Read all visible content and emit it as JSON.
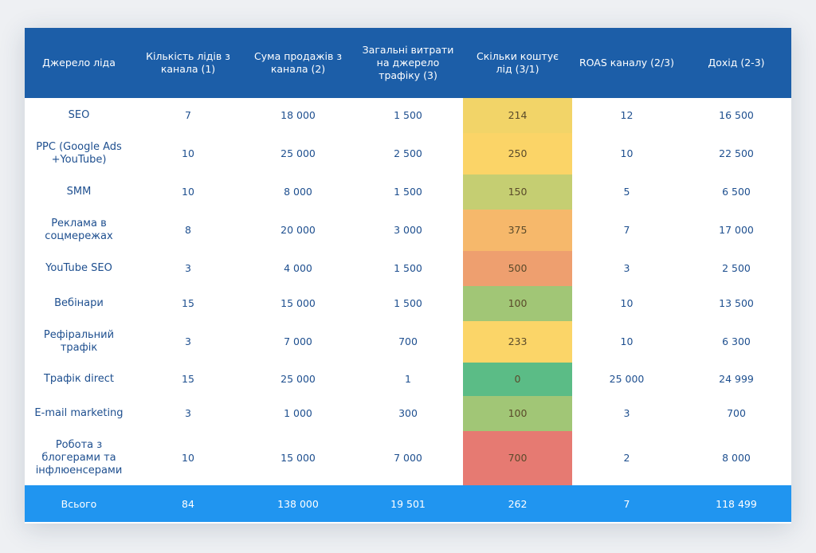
{
  "headers": [
    "Джерело ліда",
    "Кількість лідів з канала (1)",
    "Сума продажів з канала (2)",
    "Загальні витрати на джерело трафіку (3)",
    "Скільки коштує лід (3/1)",
    "ROAS каналу (2/3)",
    "Дохід (2-3)"
  ],
  "rows": [
    {
      "source": "SEO",
      "leads": "7",
      "sales": "18 000",
      "costs": "1 500",
      "cpl": "214",
      "roas": "12",
      "income": "16 500",
      "cpl_color": "#f2d468"
    },
    {
      "source": "PPC (Google Ads +YouTube)",
      "leads": "10",
      "sales": "25 000",
      "costs": "2 500",
      "cpl": "250",
      "roas": "10",
      "income": "22 500",
      "cpl_color": "#fbd467"
    },
    {
      "source": "SMM",
      "leads": "10",
      "sales": "8 000",
      "costs": "1 500",
      "cpl": "150",
      "roas": "5",
      "income": "6 500",
      "cpl_color": "#c5ce72"
    },
    {
      "source": "Реклама в соцмережах",
      "leads": "8",
      "sales": "20 000",
      "costs": "3 000",
      "cpl": "375",
      "roas": "7",
      "income": "17 000",
      "cpl_color": "#f6b86b"
    },
    {
      "source": "YouTube SEO",
      "leads": "3",
      "sales": "4 000",
      "costs": "1 500",
      "cpl": "500",
      "roas": "3",
      "income": "2 500",
      "cpl_color": "#ee9f6f"
    },
    {
      "source": "Вебінари",
      "leads": "15",
      "sales": "15 000",
      "costs": "1 500",
      "cpl": "100",
      "roas": "10",
      "income": "13 500",
      "cpl_color": "#a1c676"
    },
    {
      "source": "Рефіральний трафік",
      "leads": "3",
      "sales": "7 000",
      "costs": "700",
      "cpl": "233",
      "roas": "10",
      "income": "6 300",
      "cpl_color": "#fbd568"
    },
    {
      "source": "Трафік direct",
      "leads": "15",
      "sales": "25 000",
      "costs": "1",
      "cpl": "0",
      "roas": "25 000",
      "income": "24 999",
      "cpl_color": "#5bbc86"
    },
    {
      "source": "E-mail marketing",
      "leads": "3",
      "sales": "1 000",
      "costs": "300",
      "cpl": "100",
      "roas": "3",
      "income": "700",
      "cpl_color": "#a1c676"
    },
    {
      "source": "Робота з блогерами та інфлюенсерами",
      "leads": "10",
      "sales": "15 000",
      "costs": "7 000",
      "cpl": "700",
      "roas": "2",
      "income": "8 000",
      "cpl_color": "#e67a72"
    }
  ],
  "totals": {
    "label": "Всього",
    "leads": "84",
    "sales": "138 000",
    "costs": "19 501",
    "cpl": "262",
    "roas": "7",
    "income": "118 499"
  },
  "colors": {
    "header_bg": "#1c5ea8",
    "footer_bg": "#2095f0",
    "body_text": "#1e4f8f"
  }
}
